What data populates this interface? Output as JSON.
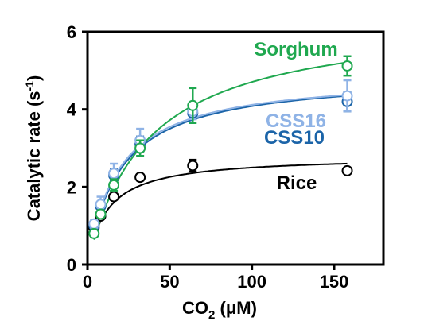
{
  "chart_data": {
    "type": "scatter",
    "title": "",
    "xlabel": "CO2 (μM)",
    "xlabel_parts": {
      "pre": "CO",
      "sub": "2",
      "post": " (μM)"
    },
    "ylabel": "Catalytic rate (s-1)",
    "ylabel_parts": {
      "pre": "Catalytic rate (s",
      "sup": "-1",
      "post": ")"
    },
    "xlim": [
      0,
      180
    ],
    "ylim": [
      0,
      6
    ],
    "xticks": [
      0,
      50,
      100,
      150
    ],
    "yticks": [
      0,
      2,
      4,
      6
    ],
    "grid": false,
    "legend": "inline labels at curve ends",
    "series": [
      {
        "name": "Rice",
        "color": "#000000",
        "x": [
          4,
          8,
          16,
          32,
          64,
          158
        ],
        "y": [
          0.95,
          1.25,
          1.75,
          2.25,
          2.55,
          2.42
        ],
        "err": [
          0.05,
          0.05,
          0.05,
          0.08,
          0.15,
          0.06
        ],
        "fit": {
          "model": "michaelis-menten",
          "vmax": 2.8,
          "km": 12
        }
      },
      {
        "name": "CSS10",
        "color": "#1b64a8",
        "x": [
          4,
          8,
          16,
          32,
          64,
          158
        ],
        "y": [
          1.0,
          1.5,
          2.3,
          3.1,
          3.9,
          4.2
        ],
        "err": [
          0.08,
          0.12,
          0.15,
          0.2,
          0.15,
          0.25
        ],
        "fit": {
          "model": "michaelis-menten",
          "vmax": 4.9,
          "km": 20
        }
      },
      {
        "name": "CSS16",
        "color": "#8fb3e6",
        "x": [
          4,
          8,
          16,
          32,
          64,
          158
        ],
        "y": [
          1.05,
          1.55,
          2.35,
          3.2,
          3.95,
          4.35
        ],
        "err": [
          0.1,
          0.2,
          0.25,
          0.3,
          0.2,
          0.4
        ],
        "fit": {
          "model": "michaelis-menten",
          "vmax": 4.9,
          "km": 19
        }
      },
      {
        "name": "Sorghum",
        "color": "#1fa84f",
        "x": [
          4,
          8,
          16,
          32,
          64,
          158
        ],
        "y": [
          0.8,
          1.3,
          2.05,
          3.0,
          4.1,
          5.12
        ],
        "err": [
          0.05,
          0.1,
          0.15,
          0.2,
          0.45,
          0.25
        ],
        "fit": {
          "model": "michaelis-menten",
          "vmax": 6.4,
          "km": 36
        }
      }
    ]
  }
}
